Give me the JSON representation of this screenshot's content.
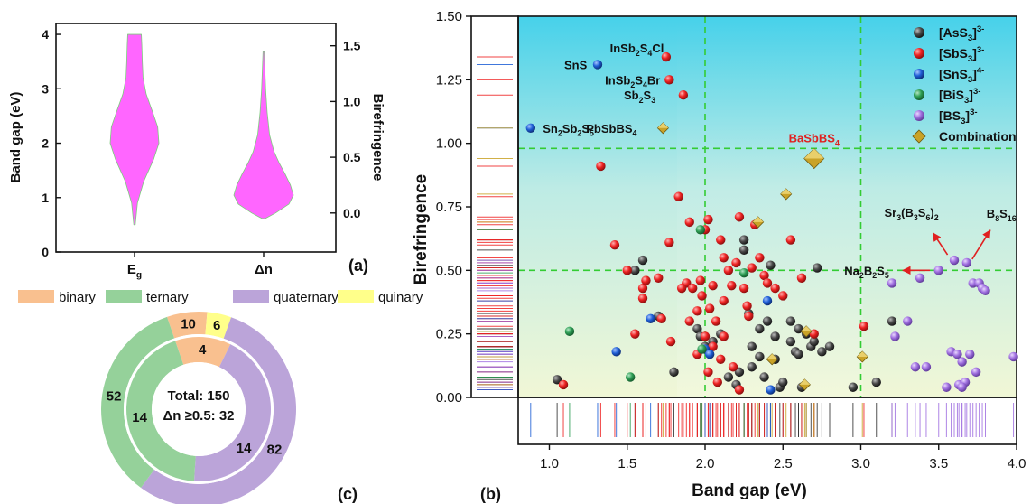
{
  "chart_data": [
    {
      "panel": "(a)",
      "type": "violin",
      "categories": [
        "E",
        "Δn"
      ],
      "category_subscripts": [
        "g",
        ""
      ],
      "ylabel_left": "Band gap (eV)",
      "ylabel_right": "Birefringence",
      "ylim_left": [
        0,
        4.2
      ],
      "yticks_left": [
        "0",
        "1",
        "2",
        "3",
        "4"
      ],
      "ylim_right": [
        -0.35,
        1.7
      ],
      "yticks_right": [
        "0.0",
        "0.5",
        "1.0",
        "1.5"
      ],
      "series": [
        {
          "name": "E",
          "axis": "left",
          "range": [
            0.5,
            4.0
          ],
          "median": 2.25,
          "density_y": [
            0.5,
            0.9,
            1.3,
            1.7,
            2.0,
            2.3,
            2.6,
            2.9,
            3.2,
            3.5,
            3.8,
            4.0
          ],
          "density_w": [
            0.03,
            0.12,
            0.38,
            0.78,
            1.0,
            0.95,
            0.72,
            0.48,
            0.35,
            0.32,
            0.3,
            0.28
          ]
        },
        {
          "name": "Δn",
          "axis": "right",
          "range": [
            0.0,
            1.45
          ],
          "median": 0.28,
          "density_y": [
            -0.05,
            0.0,
            0.08,
            0.16,
            0.25,
            0.35,
            0.45,
            0.55,
            0.7,
            0.9,
            1.1,
            1.3,
            1.45
          ],
          "density_w": [
            0.05,
            0.4,
            0.85,
            1.0,
            0.9,
            0.72,
            0.52,
            0.35,
            0.2,
            0.12,
            0.07,
            0.04,
            0.02
          ]
        }
      ],
      "color": "#ff66ff"
    },
    {
      "panel": "(b)",
      "type": "scatter",
      "xlabel": "Band gap (eV)",
      "ylabel": "Birefringence",
      "xlim": [
        0.8,
        4.0
      ],
      "ylim": [
        0.0,
        1.5
      ],
      "xticks": [
        "1.0",
        "1.5",
        "2.0",
        "2.5",
        "3.0",
        "3.5",
        "4.0"
      ],
      "yticks": [
        "0.00",
        "0.25",
        "0.50",
        "0.75",
        "1.00",
        "1.25",
        "1.50"
      ],
      "reference_lines": {
        "x": [
          2.0,
          3.0
        ],
        "y": [
          0.5,
          0.98
        ],
        "color": "#33cc33"
      },
      "legend": {
        "position": "top-right",
        "entries": [
          {
            "base": "[AsS",
            "sub": "3",
            "tail": "]",
            "sup": "3-",
            "color": "#333333",
            "marker": "sphere"
          },
          {
            "base": "[SbS",
            "sub": "3",
            "tail": "]",
            "sup": "3-",
            "color": "#ee2222",
            "marker": "sphere"
          },
          {
            "base": "[SnS",
            "sub": "3",
            "tail": "]",
            "sup": "4-",
            "color": "#1f5fd6",
            "marker": "sphere"
          },
          {
            "base": "[BiS",
            "sub": "3",
            "tail": "]",
            "sup": "3-",
            "color": "#2e9e55",
            "marker": "sphere"
          },
          {
            "base": "[BS",
            "sub": "3",
            "tail": "]",
            "sup": "3-",
            "color": "#a070e0",
            "marker": "sphere"
          },
          {
            "base": "Combination",
            "sub": "",
            "tail": "",
            "sup": "",
            "color": "#c9a227",
            "marker": "diamond"
          }
        ]
      },
      "annotations": [
        {
          "parts": [
            [
              "SnS",
              ""
            ]
          ],
          "x": 1.3,
          "y": 1.31,
          "group": "[SnS3]4-"
        },
        {
          "parts": [
            [
              "InSb",
              ""
            ],
            [
              "2",
              "sub"
            ],
            [
              "S",
              ""
            ],
            [
              "4",
              "sub"
            ],
            [
              "Cl",
              ""
            ]
          ],
          "x": 1.77,
          "y": 1.34,
          "group": "[SbS3]3-"
        },
        {
          "parts": [
            [
              "InSb",
              ""
            ],
            [
              "2",
              "sub"
            ],
            [
              "S",
              ""
            ],
            [
              "4",
              "sub"
            ],
            [
              "Br",
              ""
            ]
          ],
          "x": 1.77,
          "y": 1.25,
          "group": "[SbS3]3-"
        },
        {
          "parts": [
            [
              "Sb",
              ""
            ],
            [
              "2",
              "sub"
            ],
            [
              "S",
              ""
            ],
            [
              "3",
              "sub"
            ]
          ],
          "x": 1.74,
          "y": 1.19,
          "group": "[SbS3]3-"
        },
        {
          "parts": [
            [
              "Sn",
              ""
            ],
            [
              "2",
              "sub"
            ],
            [
              "Sb",
              ""
            ],
            [
              "2",
              "sub"
            ],
            [
              "S",
              ""
            ],
            [
              "5",
              "sub"
            ]
          ],
          "x": 0.9,
          "y": 1.06,
          "group": "[SnS3]4-"
        },
        {
          "parts": [
            [
              "PbSbBS",
              ""
            ],
            [
              "4",
              "sub"
            ]
          ],
          "x": 1.62,
          "y": 1.06,
          "group": "Combination"
        },
        {
          "parts": [
            [
              "BaSbBS",
              ""
            ],
            [
              "4",
              "sub"
            ]
          ],
          "x": 2.7,
          "y": 0.94,
          "group": "Combination",
          "highlight": "#e02020"
        },
        {
          "parts": [
            [
              "Sr",
              ""
            ],
            [
              "3",
              "sub"
            ],
            [
              "(B",
              ""
            ],
            [
              "3",
              "sub"
            ],
            [
              "S",
              ""
            ],
            [
              "6",
              "sub"
            ],
            [
              ")",
              ""
            ],
            [
              "2",
              "sub"
            ]
          ],
          "x": 3.58,
          "y": 0.54,
          "group": "[BS3]3-"
        },
        {
          "parts": [
            [
              "B",
              ""
            ],
            [
              "8",
              "sub"
            ],
            [
              "S",
              ""
            ],
            [
              "16",
              "sub"
            ]
          ],
          "x": 3.68,
          "y": 0.53,
          "group": "[BS3]3-"
        },
        {
          "parts": [
            [
              "Na",
              ""
            ],
            [
              "2",
              "sub"
            ],
            [
              "B",
              ""
            ],
            [
              "2",
              "sub"
            ],
            [
              "S",
              ""
            ],
            [
              "5",
              "sub"
            ]
          ],
          "x": 3.49,
          "y": 0.5,
          "group": "[BS3]3-"
        }
      ],
      "series": [
        {
          "name": "[AsS3]3-",
          "x": [
            1.05,
            1.6,
            1.8,
            1.95,
            1.97,
            2.0,
            2.05,
            2.1,
            2.15,
            2.2,
            2.22,
            2.25,
            2.25,
            2.28,
            2.3,
            2.3,
            2.35,
            2.38,
            2.4,
            2.42,
            2.45,
            2.45,
            2.48,
            2.5,
            2.55,
            2.55,
            2.58,
            2.6,
            2.62,
            2.65,
            2.68,
            2.7,
            2.72,
            2.75,
            2.8,
            2.95,
            3.1,
            3.2,
            1.55,
            1.7,
            2.35,
            2.6
          ],
          "y": [
            0.07,
            0.54,
            0.1,
            0.27,
            0.24,
            0.2,
            0.22,
            0.25,
            0.08,
            0.05,
            0.1,
            0.58,
            0.62,
            0.33,
            0.2,
            0.12,
            0.27,
            0.08,
            0.3,
            0.52,
            0.15,
            0.24,
            0.04,
            0.06,
            0.3,
            0.22,
            0.18,
            0.17,
            0.04,
            0.25,
            0.2,
            0.22,
            0.51,
            0.18,
            0.2,
            0.04,
            0.06,
            0.3,
            0.5,
            0.32,
            0.16,
            0.27
          ]
        },
        {
          "name": "[SbS3]3-",
          "x": [
            1.09,
            1.33,
            1.42,
            1.5,
            1.6,
            1.6,
            1.62,
            1.7,
            1.72,
            1.75,
            1.77,
            1.77,
            1.83,
            1.86,
            1.88,
            1.9,
            1.92,
            1.95,
            1.97,
            1.98,
            2.0,
            2.02,
            2.03,
            2.05,
            2.07,
            2.1,
            2.12,
            2.12,
            2.15,
            2.17,
            2.2,
            2.22,
            2.25,
            2.27,
            2.3,
            2.32,
            2.35,
            2.38,
            2.4,
            2.45,
            2.5,
            2.55,
            2.62,
            2.7,
            3.02,
            1.55,
            1.78,
            1.85,
            1.9,
            2.0,
            2.05,
            2.1,
            2.18,
            2.28,
            2.12,
            2.02,
            1.95,
            2.08,
            2.22
          ],
          "y": [
            0.05,
            0.91,
            0.6,
            0.5,
            0.43,
            0.39,
            0.46,
            0.47,
            0.31,
            1.34,
            1.25,
            0.61,
            0.79,
            1.19,
            0.45,
            0.69,
            0.43,
            0.34,
            0.46,
            0.4,
            0.66,
            0.7,
            0.35,
            0.44,
            0.3,
            0.62,
            0.55,
            0.24,
            0.5,
            0.44,
            0.53,
            0.71,
            0.43,
            0.36,
            0.51,
            0.68,
            0.55,
            0.48,
            0.45,
            0.43,
            0.4,
            0.62,
            0.47,
            0.25,
            0.28,
            0.25,
            0.22,
            0.43,
            0.3,
            0.24,
            0.2,
            0.15,
            0.12,
            0.32,
            0.38,
            0.1,
            0.17,
            0.06,
            0.03
          ]
        },
        {
          "name": "[SnS3]4-",
          "x": [
            0.88,
            1.31,
            1.43,
            1.65,
            2.0,
            2.03,
            2.4,
            2.42
          ],
          "y": [
            1.06,
            1.31,
            0.18,
            0.31,
            0.19,
            0.17,
            0.38,
            0.03
          ]
        },
        {
          "name": "[BiS3]3-",
          "x": [
            1.13,
            1.52,
            1.98,
            1.97,
            2.25
          ],
          "y": [
            0.26,
            0.08,
            0.19,
            0.66,
            0.49
          ]
        },
        {
          "name": "[BS3]3-",
          "x": [
            3.2,
            3.3,
            3.35,
            3.38,
            3.42,
            3.5,
            3.55,
            3.58,
            3.6,
            3.62,
            3.63,
            3.65,
            3.67,
            3.68,
            3.7,
            3.72,
            3.74,
            3.76,
            3.78,
            3.8,
            3.98,
            3.22,
            3.65
          ],
          "y": [
            0.45,
            0.3,
            0.12,
            0.47,
            0.12,
            0.5,
            0.04,
            0.18,
            0.54,
            0.17,
            0.05,
            0.14,
            0.06,
            0.53,
            0.17,
            0.45,
            0.1,
            0.45,
            0.43,
            0.42,
            0.16,
            0.24,
            0.04
          ]
        },
        {
          "name": "Combination",
          "x": [
            1.73,
            2.34,
            2.52,
            2.43,
            2.65,
            2.64,
            3.01,
            2.7
          ],
          "y": [
            1.06,
            0.69,
            0.8,
            0.15,
            0.26,
            0.05,
            0.16,
            0.94
          ]
        }
      ]
    },
    {
      "panel": "(c)",
      "type": "pie",
      "legend": [
        "binary",
        "ternary",
        "quaternary",
        "quinary"
      ],
      "colors": {
        "binary": "#f9c08f",
        "ternary": "#95d19a",
        "quaternary": "#bba4d9",
        "quinary": "#ffff8a"
      },
      "rings": [
        {
          "name": "outer",
          "values": {
            "binary": 10,
            "ternary": 52,
            "quaternary": 82,
            "quinary": 6
          }
        },
        {
          "name": "inner",
          "values": {
            "binary": 4,
            "ternary": 14,
            "quaternary": 14,
            "quinary": 0
          }
        }
      ],
      "slice_labels": [
        {
          "text": "10",
          "ring": "outer"
        },
        {
          "text": "6",
          "ring": "outer"
        },
        {
          "text": "52",
          "ring": "outer"
        },
        {
          "text": "82",
          "ring": "outer"
        },
        {
          "text": "4",
          "ring": "inner"
        },
        {
          "text": "14",
          "ring": "inner"
        },
        {
          "text": "14",
          "ring": "inner"
        }
      ],
      "center_text": [
        "Total: 150",
        "Δn ≥0.5: 32"
      ]
    }
  ]
}
